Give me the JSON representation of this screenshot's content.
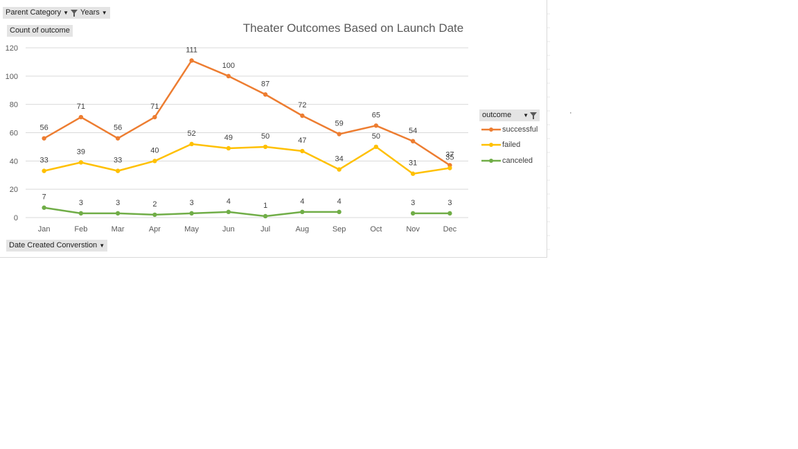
{
  "filters": {
    "parent_category": "Parent Category",
    "years": "Years"
  },
  "value_button": "Count of outcome",
  "axis_field_button": "Date Created Converstion",
  "legend": {
    "title": "outcome"
  },
  "colors": {
    "successful": "#ED7D31",
    "failed": "#FFC000",
    "canceled": "#70AD47",
    "grid": "#d9d9d9",
    "button_bg": "#e4e4e4"
  },
  "chart_data": {
    "type": "line",
    "title": "Theater Outcomes Based on Launch Date",
    "xlabel": "",
    "ylabel": "",
    "ylim": [
      0,
      120
    ],
    "yticks": [
      0,
      20,
      40,
      60,
      80,
      100,
      120
    ],
    "grid": true,
    "legend_position": "right",
    "categories": [
      "Jan",
      "Feb",
      "Mar",
      "Apr",
      "May",
      "Jun",
      "Jul",
      "Aug",
      "Sep",
      "Oct",
      "Nov",
      "Dec"
    ],
    "series": [
      {
        "name": "successful",
        "values": [
          56,
          71,
          56,
          71,
          111,
          100,
          87,
          72,
          59,
          65,
          54,
          37
        ]
      },
      {
        "name": "failed",
        "values": [
          33,
          39,
          33,
          40,
          52,
          49,
          50,
          47,
          34,
          50,
          31,
          35
        ]
      },
      {
        "name": "canceled",
        "values": [
          7,
          3,
          3,
          2,
          3,
          4,
          1,
          4,
          4,
          null,
          3,
          3
        ]
      }
    ]
  }
}
